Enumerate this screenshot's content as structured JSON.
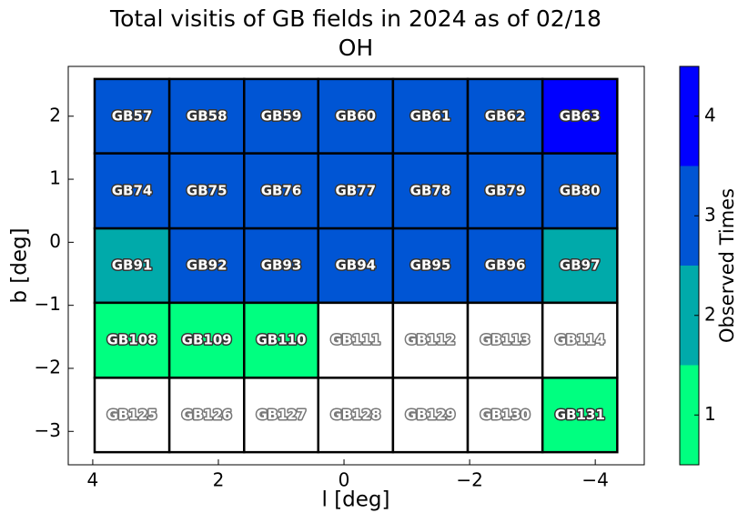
{
  "chart_data": {
    "type": "heatmap",
    "title": "Total visitis of GB fields in 2024 as of 02/18",
    "subtitle": "OH",
    "x_label": "l [deg]",
    "y_label": "b [deg]",
    "xlim": [
      4.39,
      -4.78
    ],
    "ylim": [
      -3.53,
      2.79
    ],
    "xticks": [
      4,
      2,
      0,
      {
        "value": -2,
        "label": "−2"
      },
      {
        "value": -4,
        "label": "−4"
      }
    ],
    "yticks": [
      2,
      1,
      0,
      {
        "value": -1,
        "label": "−1"
      },
      {
        "value": -2,
        "label": "−2"
      },
      {
        "value": -3,
        "label": "−3"
      }
    ],
    "x_edges": [
      3.97,
      2.78,
      1.59,
      0.41,
      -0.78,
      -1.97,
      -3.16,
      -4.35
    ],
    "y_edges": [
      2.59,
      1.41,
      0.22,
      -0.96,
      -2.15,
      -3.33
    ],
    "labels": [
      [
        "GB57",
        "GB58",
        "GB59",
        "GB60",
        "GB61",
        "GB62",
        "GB63"
      ],
      [
        "GB74",
        "GB75",
        "GB76",
        "GB77",
        "GB78",
        "GB79",
        "GB80"
      ],
      [
        "GB91",
        "GB92",
        "GB93",
        "GB94",
        "GB95",
        "GB96",
        "GB97"
      ],
      [
        "GB108",
        "GB109",
        "GB110",
        "GB111",
        "GB112",
        "GB113",
        "GB114"
      ],
      [
        "GB125",
        "GB126",
        "GB127",
        "GB128",
        "GB129",
        "GB130",
        "GB131"
      ]
    ],
    "values": [
      [
        3,
        3,
        3,
        3,
        3,
        3,
        4
      ],
      [
        3,
        3,
        3,
        3,
        3,
        3,
        3
      ],
      [
        2,
        3,
        3,
        3,
        3,
        3,
        2
      ],
      [
        1,
        1,
        1,
        0,
        0,
        0,
        0
      ],
      [
        0,
        0,
        0,
        0,
        0,
        0,
        1
      ]
    ],
    "colorbar": {
      "label": "Observed Times",
      "lim": [
        0.5,
        4.5
      ],
      "ticks": [
        1,
        2,
        3,
        4
      ],
      "colors": [
        "#00ff80",
        "#00aaaa",
        "#0055d4",
        "#0000ff"
      ],
      "under_color": "#ffffff"
    }
  }
}
